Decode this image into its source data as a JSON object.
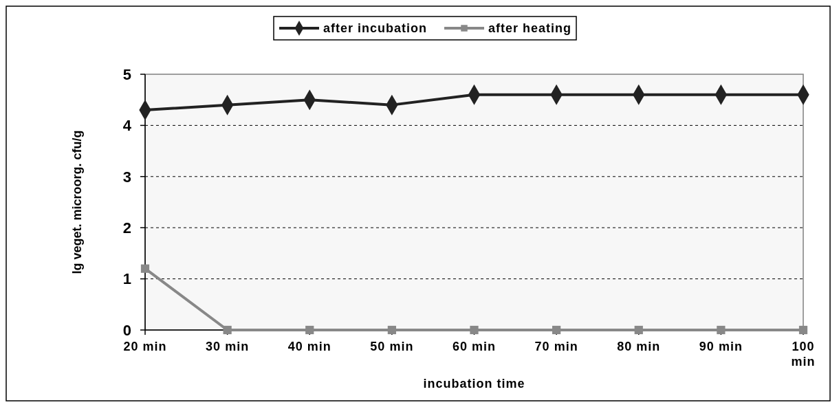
{
  "chart_data": {
    "type": "line",
    "xlabel": "incubation time",
    "ylabel": "lg veget. microorg. cfu/g",
    "categories": [
      "20 min",
      "30 min",
      "40 min",
      "50 min",
      "60 min",
      "70 min",
      "80 min",
      "90 min",
      "100 min"
    ],
    "series": [
      {
        "name": "after incubation",
        "color": "#222222",
        "marker": "diamond",
        "values": [
          4.3,
          4.4,
          4.5,
          4.4,
          4.6,
          4.6,
          4.6,
          4.6,
          4.6
        ]
      },
      {
        "name": "after heating",
        "color": "#888888",
        "marker": "square",
        "values": [
          1.2,
          0,
          0,
          0,
          0,
          0,
          0,
          0,
          0
        ]
      }
    ],
    "ylim": [
      0,
      5
    ],
    "yticks": [
      0,
      1,
      2,
      3,
      4,
      5
    ],
    "grid": "y",
    "legend": "top"
  }
}
